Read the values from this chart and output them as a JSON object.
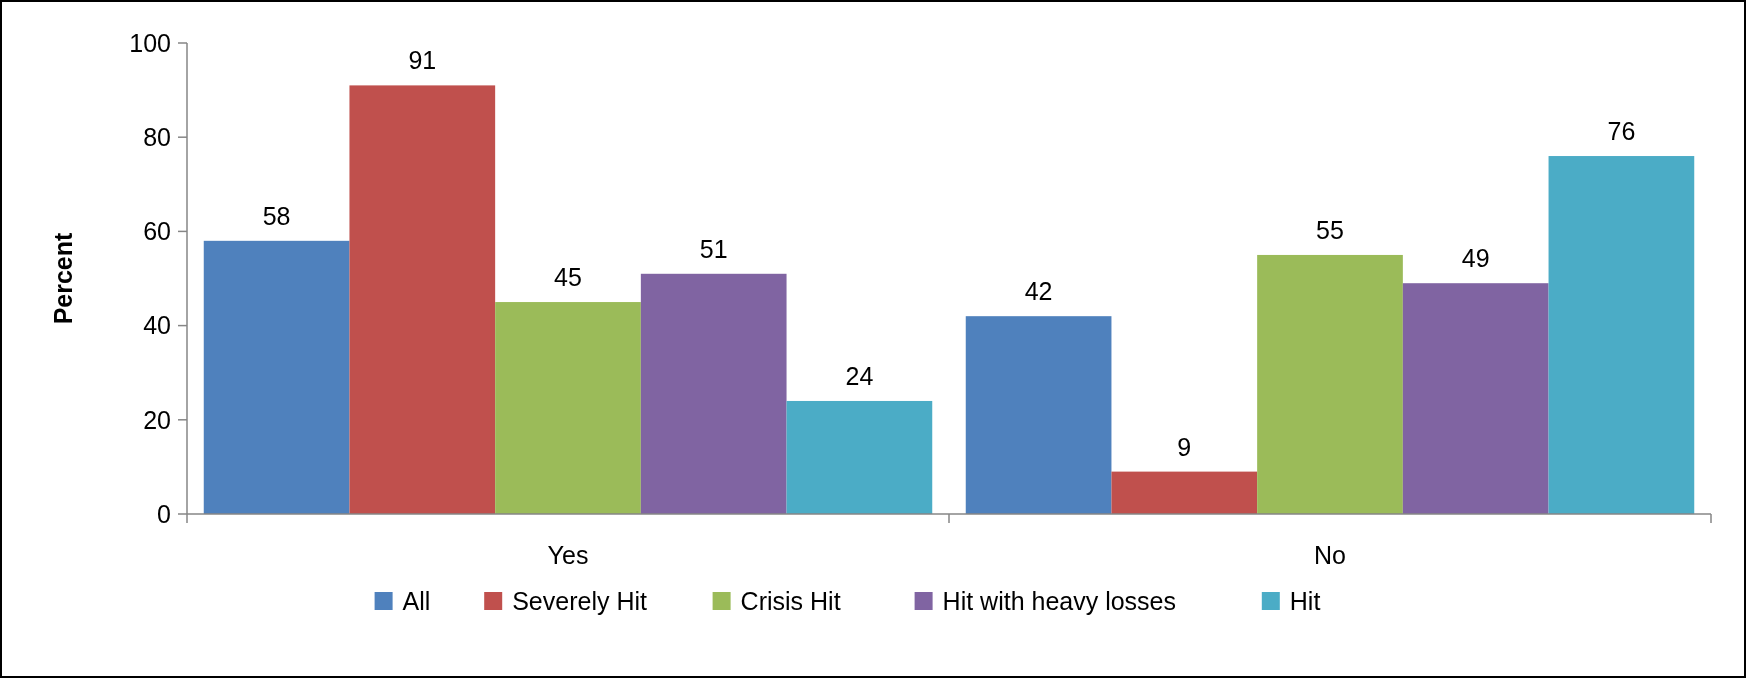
{
  "chart_data": {
    "type": "bar",
    "ylabel": "Percent",
    "categories": [
      "Yes",
      "No"
    ],
    "series": [
      {
        "name": "All",
        "color": "#4f81bd",
        "values": [
          58,
          42
        ]
      },
      {
        "name": "Severely Hit",
        "color": "#c0504d",
        "values": [
          91,
          9
        ]
      },
      {
        "name": "Crisis Hit",
        "color": "#9bbb59",
        "values": [
          45,
          55
        ]
      },
      {
        "name": "Hit with heavy losses",
        "color": "#8064a2",
        "values": [
          51,
          49
        ]
      },
      {
        "name": "Hit",
        "color": "#4bacc6",
        "values": [
          24,
          76
        ]
      }
    ],
    "ylim": [
      0,
      100
    ],
    "yticks": [
      0,
      20,
      40,
      60,
      80,
      100
    ],
    "grid": false,
    "legend": "bottom",
    "data_labels": true
  }
}
